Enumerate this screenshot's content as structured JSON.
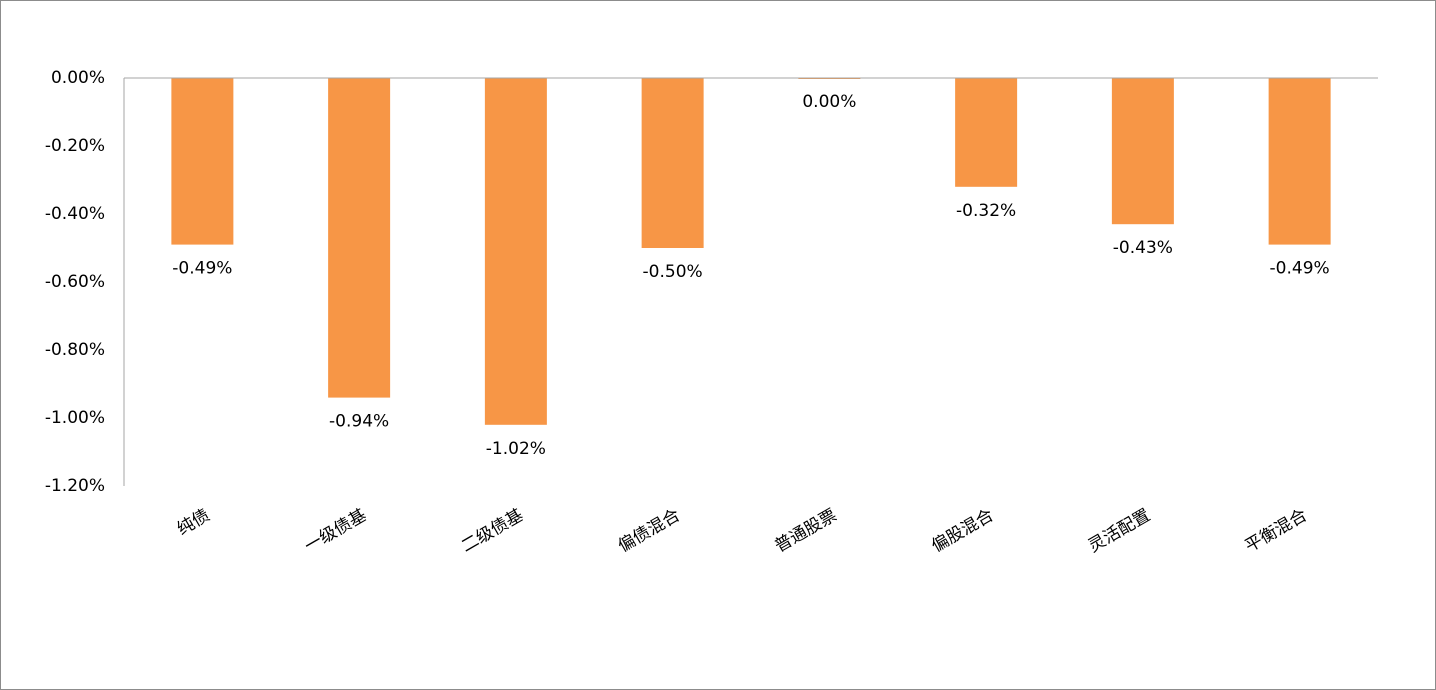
{
  "chart_data": {
    "type": "bar",
    "categories": [
      "纯债",
      "一级债基",
      "二级债基",
      "偏债混合",
      "普通股票",
      "偏股混合",
      "灵活配置",
      "平衡混合"
    ],
    "values": [
      -0.49,
      -0.94,
      -1.02,
      -0.5,
      0.0,
      -0.32,
      -0.43,
      -0.49
    ],
    "value_labels": [
      "-0.49%",
      "-0.94%",
      "-1.02%",
      "-0.50%",
      "0.00%",
      "-0.32%",
      "-0.43%",
      "-0.49%"
    ],
    "color": "#f79646",
    "ylim": [
      -1.2,
      0
    ],
    "yticks": [
      {
        "value": 0,
        "label": "0.00%"
      },
      {
        "value": -0.2,
        "label": "-0.20%"
      },
      {
        "value": -0.4,
        "label": "-0.40%"
      },
      {
        "value": -0.6,
        "label": "-0.60%"
      },
      {
        "value": -0.8,
        "label": "-0.80%"
      },
      {
        "value": -1.0,
        "label": "-1.00%"
      },
      {
        "value": -1.2,
        "label": "-1.20%"
      }
    ],
    "grid": false
  }
}
